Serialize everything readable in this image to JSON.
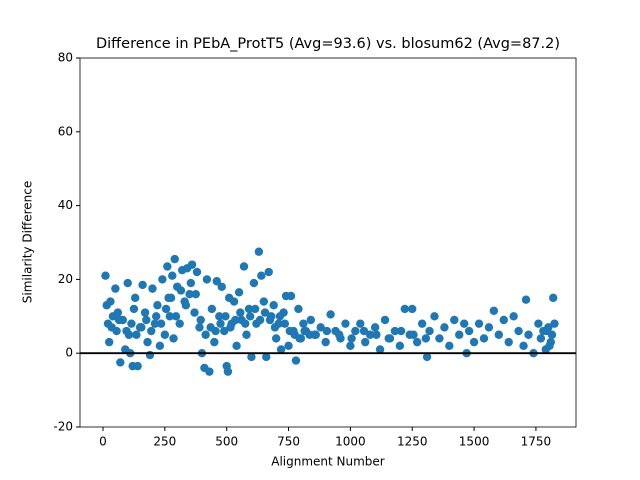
{
  "chart_data": {
    "type": "scatter",
    "title": "Difference in PEbA_ProtT5 (Avg=93.6) vs. blosum62 (Avg=87.2)",
    "xlabel": "Alignment Number",
    "ylabel": "Similarity Difference",
    "xlim": [
      -93,
      1912
    ],
    "ylim": [
      -20,
      80
    ],
    "xticks": [
      0,
      250,
      500,
      750,
      1000,
      1250,
      1500,
      1750
    ],
    "yticks": [
      -20,
      0,
      20,
      40,
      60,
      80
    ],
    "reference_line": 0,
    "color": "#1f77b4",
    "x": [
      10,
      15,
      20,
      25,
      30,
      40,
      50,
      55,
      60,
      70,
      80,
      90,
      100,
      105,
      110,
      120,
      125,
      130,
      140,
      150,
      160,
      170,
      180,
      190,
      200,
      210,
      220,
      230,
      240,
      250,
      260,
      265,
      270,
      280,
      285,
      290,
      300,
      310,
      320,
      330,
      340,
      350,
      360,
      370,
      380,
      390,
      400,
      410,
      420,
      430,
      440,
      450,
      460,
      470,
      480,
      490,
      500,
      505,
      510,
      520,
      530,
      540,
      550,
      560,
      570,
      580,
      590,
      600,
      610,
      620,
      630,
      640,
      650,
      660,
      670,
      680,
      690,
      700,
      710,
      720,
      730,
      740,
      750,
      760,
      770,
      780,
      790,
      800,
      810,
      820,
      840,
      860,
      880,
      900,
      920,
      940,
      960,
      980,
      1000,
      1020,
      1040,
      1060,
      1080,
      1100,
      1120,
      1140,
      1160,
      1180,
      1200,
      1220,
      1240,
      1250,
      1270,
      1290,
      1310,
      1320,
      1340,
      1360,
      1380,
      1400,
      1420,
      1440,
      1460,
      1470,
      1480,
      1500,
      1520,
      1540,
      1560,
      1580,
      1600,
      1620,
      1640,
      1660,
      1680,
      1700,
      1710,
      1720,
      1740,
      1760,
      1770,
      1780,
      1790,
      1800,
      1810,
      1820,
      1825,
      1815,
      1805,
      1795,
      35,
      65,
      95,
      115,
      135,
      155,
      175,
      195,
      215,
      235,
      255,
      275,
      295,
      315,
      335,
      355,
      375,
      395,
      415,
      435,
      455,
      475,
      495,
      515,
      535,
      555,
      575,
      595,
      615,
      635,
      655,
      675,
      695,
      715,
      735,
      755,
      775,
      795,
      815,
      835,
      855,
      905,
      955,
      1005,
      1055,
      1105,
      1155,
      1205,
      1255,
      1305
    ],
    "values": [
      21,
      13,
      8,
      3,
      14,
      10,
      17.5,
      6,
      11,
      -2.5,
      9,
      1,
      19,
      5,
      0,
      -3.5,
      12,
      15,
      -3.5,
      7,
      18.5,
      11,
      3,
      -0.5,
      17.5,
      8,
      13,
      2,
      20,
      5,
      23.5,
      15,
      10,
      21,
      4,
      25.5,
      18,
      8,
      22.5,
      14,
      23,
      16,
      24,
      11,
      22,
      7,
      0,
      -4,
      20,
      -5,
      12,
      3,
      19.5,
      10,
      18,
      6,
      -3.5,
      -5,
      15,
      8,
      14,
      2,
      16.5,
      9,
      23.5,
      5,
      12,
      -1,
      19,
      8,
      27.5,
      21,
      14,
      -1,
      22,
      10,
      13,
      4,
      8,
      1,
      11,
      15.5,
      2,
      15.5,
      6,
      -2,
      12,
      4,
      8,
      6,
      9,
      5,
      7,
      3,
      10.5,
      6,
      4,
      8,
      2,
      6,
      8,
      3,
      5,
      7,
      1,
      9,
      4,
      6,
      2,
      12,
      5,
      12,
      3,
      8,
      -1,
      6,
      10,
      4,
      7,
      2,
      9,
      5,
      8,
      0,
      6,
      3,
      8,
      4,
      7,
      11.5,
      5,
      9,
      3,
      10,
      6,
      2,
      14.5,
      5,
      0,
      8,
      4,
      6,
      1,
      7,
      3,
      15,
      8,
      5,
      2,
      6,
      7,
      9,
      6,
      8,
      5,
      7,
      9,
      6,
      10,
      8,
      12,
      15,
      10,
      17,
      13,
      19,
      16,
      9,
      5,
      7,
      6,
      8,
      10,
      7,
      9,
      11,
      8,
      10,
      12,
      9,
      11,
      9,
      7,
      10,
      8,
      6,
      5,
      4,
      6,
      5,
      5,
      6,
      5,
      4,
      6,
      5,
      4,
      6,
      5,
      4
    ]
  }
}
